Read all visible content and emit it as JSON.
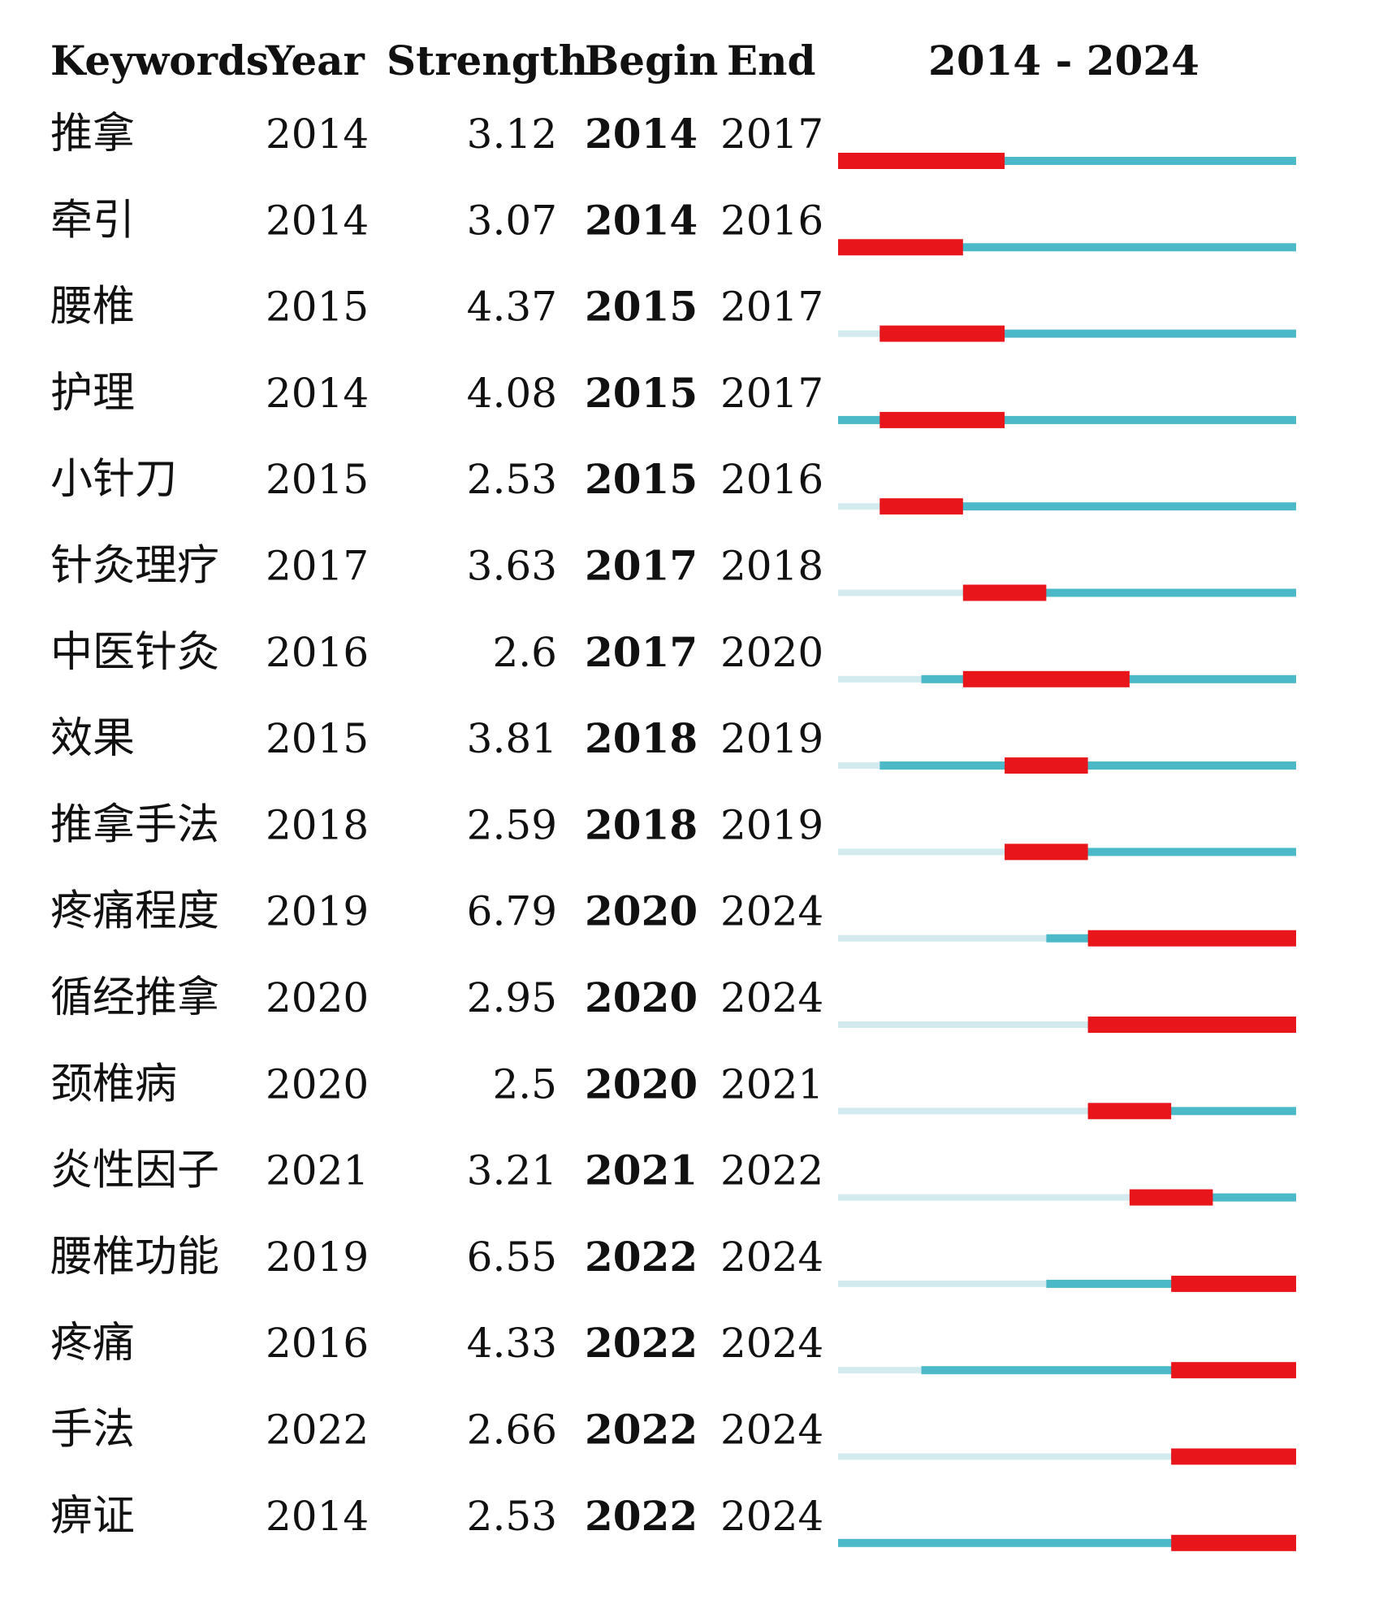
{
  "chart_data": {
    "type": "table",
    "columns": [
      "Keywords",
      "Year",
      "Strength",
      "Begin",
      "End"
    ],
    "range_label": "2014 - 2024",
    "range": [
      2014,
      2024
    ],
    "colors": {
      "burst": "#e8151b",
      "active": "#4cb9c8",
      "inactive": "#d3ebef"
    },
    "rows": [
      {
        "keyword": "推拿",
        "year": "2014",
        "strength": "3.12",
        "begin": "2014",
        "end": "2017"
      },
      {
        "keyword": "牵引",
        "year": "2014",
        "strength": "3.07",
        "begin": "2014",
        "end": "2016"
      },
      {
        "keyword": "腰椎",
        "year": "2015",
        "strength": "4.37",
        "begin": "2015",
        "end": "2017"
      },
      {
        "keyword": "护理",
        "year": "2014",
        "strength": "4.08",
        "begin": "2015",
        "end": "2017"
      },
      {
        "keyword": "小针刀",
        "year": "2015",
        "strength": "2.53",
        "begin": "2015",
        "end": "2016"
      },
      {
        "keyword": "针灸理疗",
        "year": "2017",
        "strength": "3.63",
        "begin": "2017",
        "end": "2018"
      },
      {
        "keyword": "中医针灸",
        "year": "2016",
        "strength": "2.6",
        "begin": "2017",
        "end": "2020"
      },
      {
        "keyword": "效果",
        "year": "2015",
        "strength": "3.81",
        "begin": "2018",
        "end": "2019"
      },
      {
        "keyword": "推拿手法",
        "year": "2018",
        "strength": "2.59",
        "begin": "2018",
        "end": "2019"
      },
      {
        "keyword": "疼痛程度",
        "year": "2019",
        "strength": "6.79",
        "begin": "2020",
        "end": "2024"
      },
      {
        "keyword": "循经推拿",
        "year": "2020",
        "strength": "2.95",
        "begin": "2020",
        "end": "2024"
      },
      {
        "keyword": "颈椎病",
        "year": "2020",
        "strength": "2.5",
        "begin": "2020",
        "end": "2021"
      },
      {
        "keyword": "炎性因子",
        "year": "2021",
        "strength": "3.21",
        "begin": "2021",
        "end": "2022"
      },
      {
        "keyword": "腰椎功能",
        "year": "2019",
        "strength": "6.55",
        "begin": "2022",
        "end": "2024"
      },
      {
        "keyword": "疼痛",
        "year": "2016",
        "strength": "4.33",
        "begin": "2022",
        "end": "2024"
      },
      {
        "keyword": "手法",
        "year": "2022",
        "strength": "2.66",
        "begin": "2022",
        "end": "2024"
      },
      {
        "keyword": "痹证",
        "year": "2014",
        "strength": "2.53",
        "begin": "2022",
        "end": "2024"
      }
    ]
  }
}
